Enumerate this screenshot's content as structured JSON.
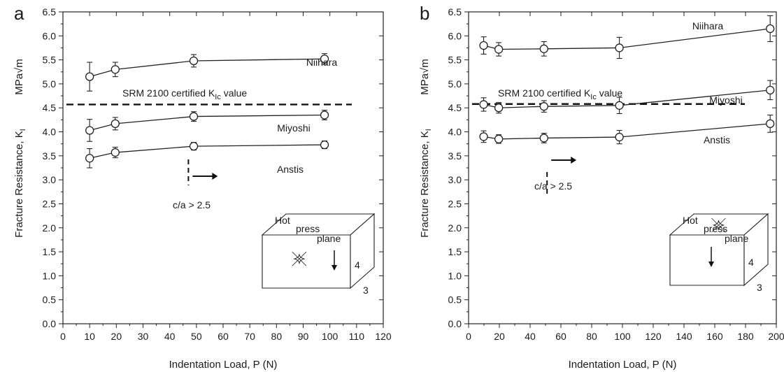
{
  "chart_data": [
    {
      "type": "line",
      "panel_label": "a",
      "xlabel": "Indentation Load, P  (N)",
      "ylabel": "Fracture Resistance, K",
      "ylabel_sub": "I",
      "ylabel_unit": "MPa√m",
      "xlim": [
        0,
        120
      ],
      "ylim": [
        0,
        6.5
      ],
      "x_ticks": [
        "0",
        "10",
        "20",
        "30",
        "40",
        "50",
        "60",
        "70",
        "80",
        "90",
        "100",
        "110",
        "120"
      ],
      "y_ticks": [
        "0.0",
        "0.5",
        "1.0",
        "1.5",
        "2.0",
        "2.5",
        "3.0",
        "3.5",
        "4.0",
        "4.5",
        "5.0",
        "5.5",
        "6.0",
        "6.5"
      ],
      "series": [
        {
          "name": "Niihara",
          "x": [
            10,
            19.6,
            49,
            98
          ],
          "y": [
            5.15,
            5.3,
            5.48,
            5.52
          ],
          "err": [
            0.3,
            0.15,
            0.13,
            0.11
          ]
        },
        {
          "name": "Miyoshi",
          "x": [
            10,
            19.6,
            49,
            98
          ],
          "y": [
            4.03,
            4.17,
            4.32,
            4.35
          ],
          "err": [
            0.23,
            0.13,
            0.1,
            0.1
          ]
        },
        {
          "name": "Anstis",
          "x": [
            10,
            19.6,
            49,
            98
          ],
          "y": [
            3.45,
            3.57,
            3.7,
            3.73
          ],
          "err": [
            0.2,
            0.11,
            0.08,
            0.08
          ]
        }
      ],
      "reference_line": {
        "y": 4.57,
        "label": "SRM 2100 certified  K",
        "label_sub": "Ic",
        "label_after": " value"
      },
      "threshold": {
        "x": 47,
        "label": "c/a > 2.5"
      },
      "inset": {
        "labels": [
          "Hot",
          "press",
          "plane"
        ],
        "dims": [
          "4",
          "3"
        ]
      }
    },
    {
      "type": "line",
      "panel_label": "b",
      "xlabel": "Indentation Load, P  (N)",
      "ylabel": "Fracture Resistance, K",
      "ylabel_sub": "I",
      "ylabel_unit": "MPa√m",
      "xlim": [
        0,
        200
      ],
      "ylim": [
        0,
        6.5
      ],
      "x_ticks": [
        "0",
        "20",
        "40",
        "60",
        "80",
        "100",
        "120",
        "140",
        "160",
        "180",
        "200"
      ],
      "y_ticks": [
        "0.0",
        "0.5",
        "1.0",
        "1.5",
        "2.0",
        "2.5",
        "3.0",
        "3.5",
        "4.0",
        "4.5",
        "5.0",
        "5.5",
        "6.0",
        "6.5"
      ],
      "series": [
        {
          "name": "Niihara",
          "x": [
            9.8,
            19.6,
            49,
            98,
            196
          ],
          "y": [
            5.8,
            5.72,
            5.73,
            5.75,
            6.15
          ],
          "err": [
            0.18,
            0.14,
            0.15,
            0.22,
            0.27
          ]
        },
        {
          "name": "Miyoshi",
          "x": [
            9.8,
            19.6,
            49,
            98,
            196
          ],
          "y": [
            4.57,
            4.5,
            4.53,
            4.55,
            4.87
          ],
          "err": [
            0.14,
            0.11,
            0.12,
            0.17,
            0.2
          ]
        },
        {
          "name": "Anstis",
          "x": [
            9.8,
            19.6,
            49,
            98,
            196
          ],
          "y": [
            3.9,
            3.85,
            3.87,
            3.89,
            4.17
          ],
          "err": [
            0.12,
            0.09,
            0.1,
            0.14,
            0.18
          ]
        }
      ],
      "reference_line": {
        "y": 4.58,
        "label": "SRM 2100 certified  K",
        "label_sub": "Ic",
        "label_after": " value"
      },
      "threshold": {
        "x": 51,
        "label": "c/a > 2.5"
      },
      "inset": {
        "labels": [
          "Hot",
          "press",
          "plane"
        ],
        "dims": [
          "4",
          "3"
        ]
      }
    }
  ]
}
